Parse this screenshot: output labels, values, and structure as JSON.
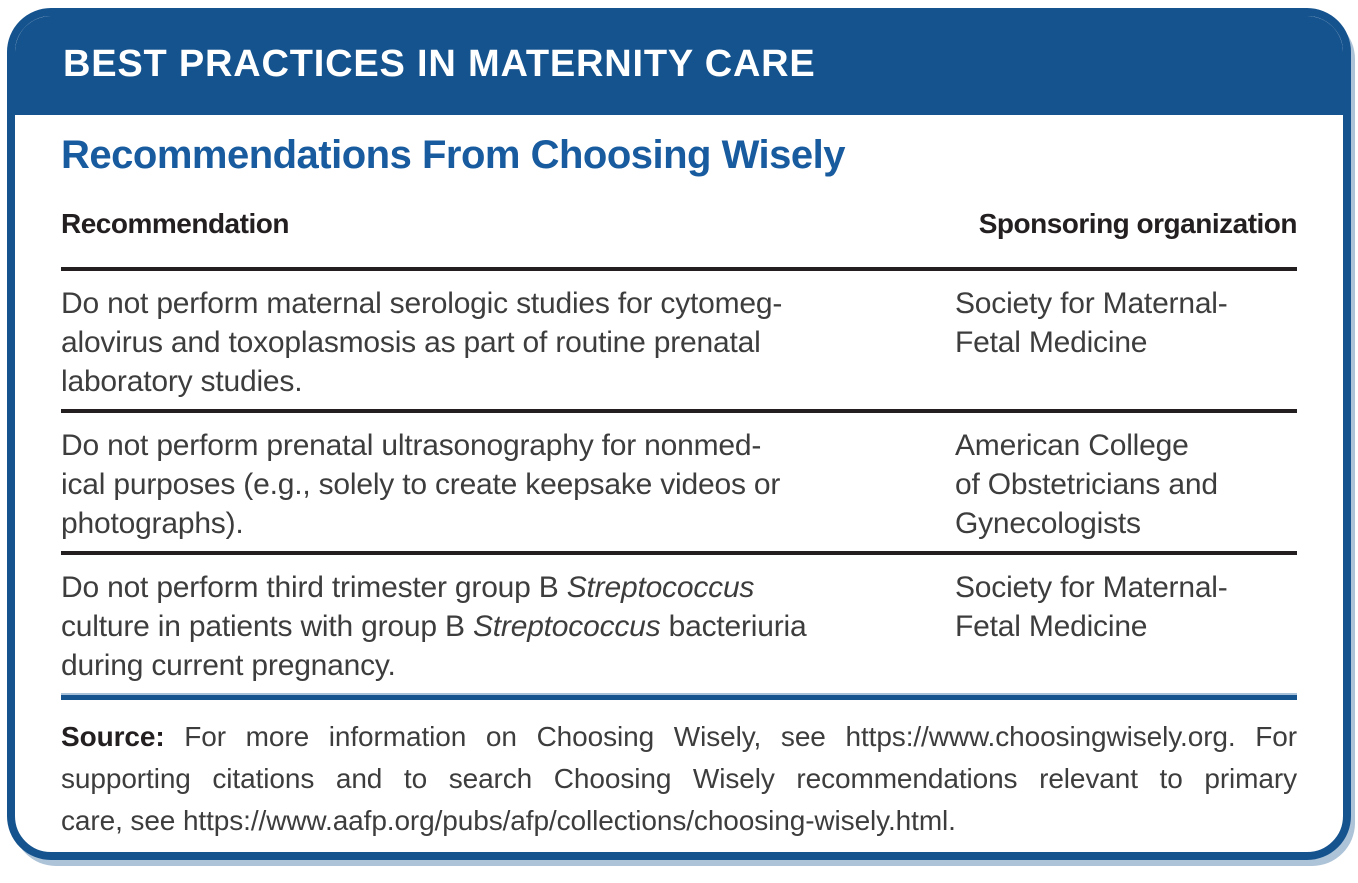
{
  "banner": {
    "title": "BEST PRACTICES IN MATERNITY CARE"
  },
  "panel": {
    "title": "Recommendations From Choosing Wisely",
    "columns": {
      "recommendation": "Recommendation",
      "organization": "Sponsoring organization"
    },
    "rows": [
      {
        "recommendation_lines": [
          "Do not perform maternal serologic studies for cytomeg-",
          "alovirus and toxoplasmosis as part of routine prenatal",
          "laboratory studies."
        ],
        "organization_lines": [
          "Society for Maternal-",
          "Fetal Medicine"
        ]
      },
      {
        "recommendation_lines": [
          "Do not perform prenatal ultrasonography for nonmed-",
          "ical purposes (e.g., solely to create keepsake videos or",
          "photographs)."
        ],
        "organization_lines": [
          "American College",
          "of Obstetricians and",
          "Gynecologists"
        ]
      },
      {
        "recommendation_rich_lines": [
          [
            {
              "text": "Do not perform third trimester group B ",
              "italic": false
            },
            {
              "text": "Streptococcus",
              "italic": true
            }
          ],
          [
            {
              "text": "culture in patients with group B ",
              "italic": false
            },
            {
              "text": "Streptococcus",
              "italic": true
            },
            {
              "text": " bacteriuria",
              "italic": false
            }
          ],
          [
            {
              "text": "during current pregnancy.",
              "italic": false
            }
          ]
        ],
        "organization_lines": [
          "Society for Maternal-",
          "Fetal Medicine"
        ]
      }
    ]
  },
  "source_note": {
    "label": "Source:",
    "line1_rest": " For more information on Choosing Wisely, see https://www.choosingwisely.org. For",
    "line2": "supporting citations and to search Choosing Wisely recommendations relevant to primary",
    "line3": "care, see https://www.aafp.org/pubs/afp/collections/choosing-wisely.html."
  },
  "colors": {
    "band_blue": "#15538E",
    "title_blue": "#185B9E",
    "rule_black": "#231F20",
    "body_text": "#3D3D3D",
    "rule_blue_light": "#A7C1DB"
  }
}
